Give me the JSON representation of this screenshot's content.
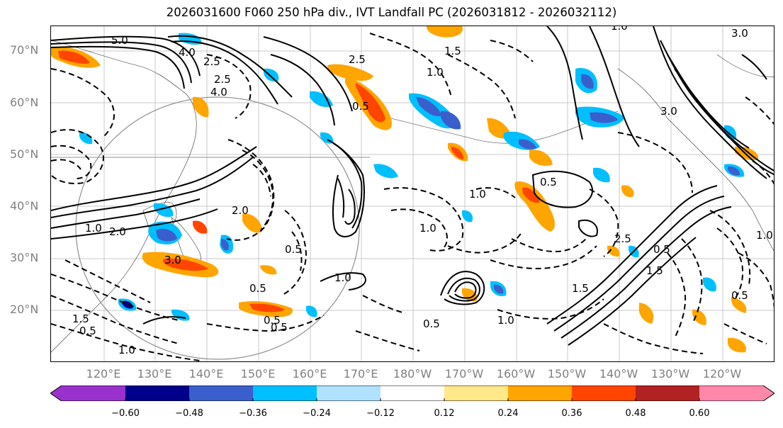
{
  "title": "2026031600 F060 250 hPa div., IVT Landfall PC (2026031812 - 2026032112)",
  "lat_labels": [
    "70°N",
    "60°N",
    "50°N",
    "40°N",
    "30°N",
    "20°N"
  ],
  "lon_labels": [
    "120°E",
    "130°E",
    "140°E",
    "150°E",
    "160°E",
    "170°E",
    "180°W",
    "170°W",
    "160°W",
    "150°W",
    "140°W",
    "130°W",
    "120°W"
  ],
  "contour_labels": [
    "5.0",
    "4.0",
    "4.0",
    "2.0",
    "1.0",
    "0.5",
    "1.0",
    "1.5",
    "2.0",
    "2.5",
    "3.0",
    "1.0",
    "0.5",
    "0.5",
    "1.0",
    "2.5",
    "3.0",
    "3.0",
    "1.5",
    "2.5",
    "1.0",
    "0.5",
    "0.5",
    "1.5",
    "2.5",
    "0.5",
    "1.0",
    "0.5",
    "1.0",
    "1.0",
    "1.0",
    "0.5",
    "1.5",
    "0.5",
    "0.5"
  ],
  "colorbar": {
    "ticks": [
      "−0.60",
      "−0.48",
      "−0.36",
      "−0.24",
      "−0.12",
      "0.12",
      "0.24",
      "0.36",
      "0.48",
      "0.60"
    ],
    "colors": [
      "#9932cc",
      "#00008b",
      "#3a5fcd",
      "#00bfff",
      "#b0e2ff",
      "#ffffff",
      "#ffe88a",
      "#ffa500",
      "#ff4500",
      "#b22222",
      "#ff88aa"
    ]
  },
  "fill_colors": {
    "strong_neg": "#3a5fcd",
    "neg": "#00bfff",
    "weak_pos": "#ffe88a",
    "pos": "#ffa500",
    "strong_pos": "#ff4500"
  }
}
